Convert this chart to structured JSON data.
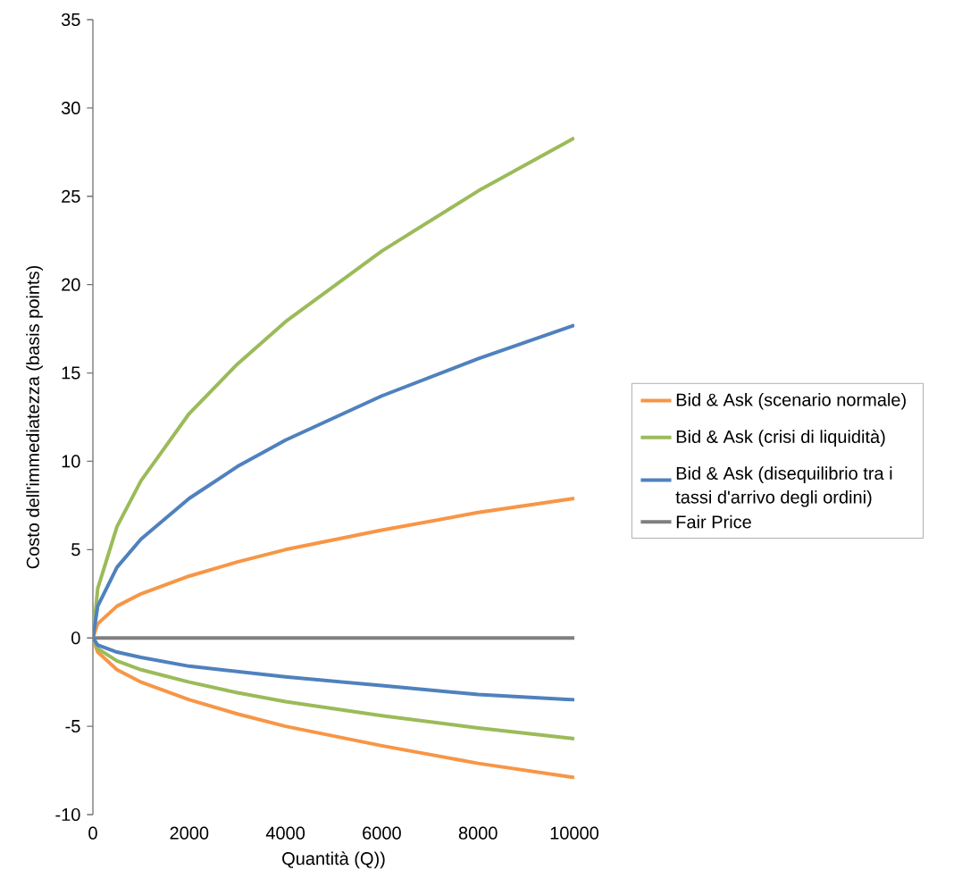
{
  "chart_data": {
    "type": "line",
    "xlabel": "Quantità (Q))",
    "ylabel": "Costo dell'immediatezza (basis points)",
    "x": [
      0,
      100,
      500,
      1000,
      2000,
      3000,
      4000,
      6000,
      8000,
      10000
    ],
    "series": [
      {
        "name": "Bid & Ask (scenario normale)",
        "color": "#f79646",
        "values": [
          0,
          0.8,
          1.8,
          2.5,
          3.5,
          4.3,
          5.0,
          6.1,
          7.1,
          7.9
        ]
      },
      {
        "name": "Bid & Ask (crisi di liquidità)",
        "color": "#9bbb59",
        "values": [
          0,
          2.8,
          6.3,
          8.9,
          12.7,
          15.5,
          17.9,
          21.9,
          25.3,
          28.3
        ]
      },
      {
        "name": "Bid & Ask (disequilibrio tra i tassi d'arrivo degli ordini)",
        "color": "#4f81bd",
        "values": [
          0,
          1.8,
          4.0,
          5.6,
          7.9,
          9.7,
          11.2,
          13.7,
          15.8,
          17.7
        ]
      },
      {
        "name": "Fair Price",
        "color": "#7f7f7f",
        "values": [
          0,
          0,
          0,
          0,
          0,
          0,
          0,
          0,
          0,
          0
        ]
      },
      {
        "color": "#f79646",
        "values": [
          0,
          -0.8,
          -1.8,
          -2.5,
          -3.5,
          -4.3,
          -5.0,
          -6.1,
          -7.1,
          -7.9
        ]
      },
      {
        "color": "#9bbb59",
        "values": [
          0,
          -0.6,
          -1.3,
          -1.8,
          -2.5,
          -3.1,
          -3.6,
          -4.4,
          -5.1,
          -5.7
        ]
      },
      {
        "color": "#4f81bd",
        "values": [
          0,
          -0.4,
          -0.8,
          -1.1,
          -1.6,
          -1.9,
          -2.2,
          -2.7,
          -3.2,
          -3.5
        ]
      }
    ],
    "xlim": [
      0,
      10000
    ],
    "ylim": [
      -10,
      35
    ],
    "xticks": [
      0,
      2000,
      4000,
      6000,
      8000,
      10000
    ],
    "yticks": [
      -10,
      -5,
      0,
      5,
      10,
      15,
      20,
      25,
      30,
      35
    ],
    "legend": "right",
    "line_style": "solid"
  }
}
